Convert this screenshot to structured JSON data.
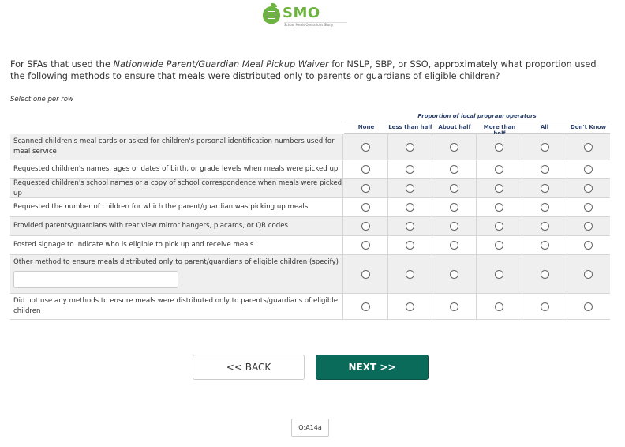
{
  "logo": {
    "name": "SMO",
    "subtitle": "School Meals Operations Study",
    "color": "#6cb33f"
  },
  "question": {
    "pre": "For SFAs that used the ",
    "italic": "Nationwide Parent/Guardian Meal Pickup Waiver",
    "post": " for NSLP, SBP, or SSO, approximately what proportion used the following methods to ensure that meals were distributed only to parents or guardians of eligible children?"
  },
  "instruction": "Select one per row",
  "group_header": "Proportion of local program operators",
  "columns": [
    "None",
    "Less than half",
    "About half",
    "More than half",
    "All",
    "Don't Know"
  ],
  "rows": [
    {
      "label": "Scanned children's meal cards or asked for children's personal identification numbers used for meal service"
    },
    {
      "label": "Requested children's names, ages or dates of birth, or grade levels when meals were picked up"
    },
    {
      "label": "Requested children's school names or a copy of school correspondence when meals were picked up"
    },
    {
      "label": "Requested the number of children for which the parent/guardian was picking up meals"
    },
    {
      "label": "Provided parents/guardians with rear view mirror hangers, placards, or QR codes"
    },
    {
      "label": "Posted signage to indicate who is eligible to pick up and receive meals"
    },
    {
      "label": "Other method to ensure meals distributed only to parent/guardians of eligible children (specify)",
      "specify_value": ""
    },
    {
      "label": "Did not use any methods to ensure meals were distributed only to parents/guardians of eligible children"
    }
  ],
  "nav": {
    "back": "<< BACK",
    "next": "NEXT >>",
    "next_color": "#0b6b5b"
  },
  "question_id": "Q:A14a"
}
